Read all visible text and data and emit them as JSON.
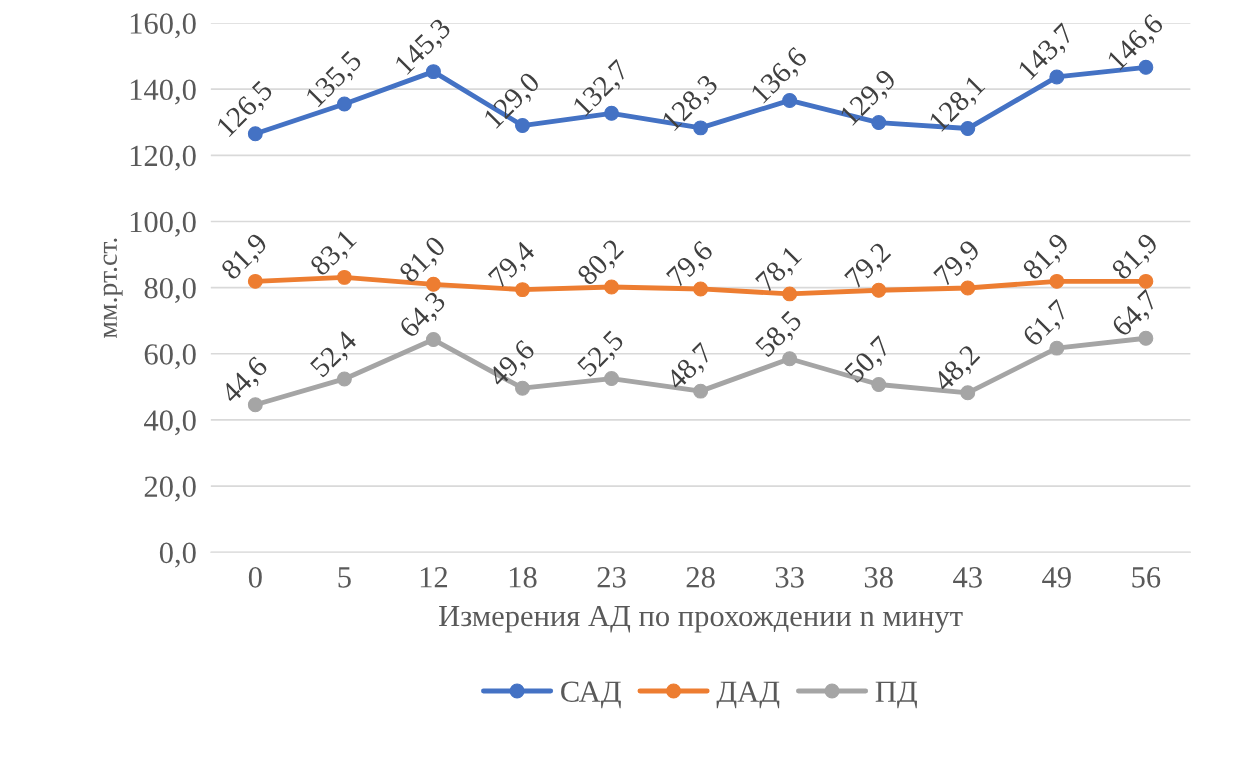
{
  "chart_data": {
    "type": "line",
    "xlabel": "Измерения АД по прохождении n минут",
    "ylabel": "мм.рт.ст.",
    "categories": [
      "0",
      "5",
      "12",
      "18",
      "23",
      "28",
      "33",
      "38",
      "43",
      "49",
      "56"
    ],
    "series": [
      {
        "name": "САД",
        "color": "#4472c4",
        "values": [
          126.5,
          135.5,
          145.3,
          129.0,
          132.7,
          128.3,
          136.6,
          129.9,
          128.1,
          143.7,
          146.6
        ],
        "value_labels": [
          "126,5",
          "135,5",
          "145,3",
          "129,0",
          "132,7",
          "128,3",
          "136,6",
          "129,9",
          "128,1",
          "143,7",
          "146,6"
        ]
      },
      {
        "name": "ДАД",
        "color": "#ed7d31",
        "values": [
          81.9,
          83.1,
          81.0,
          79.4,
          80.2,
          79.6,
          78.1,
          79.2,
          79.9,
          81.9,
          81.9
        ],
        "value_labels": [
          "81,9",
          "83,1",
          "81,0",
          "79,4",
          "80,2",
          "79,6",
          "78,1",
          "79,2",
          "79,9",
          "81,9",
          "81,9"
        ]
      },
      {
        "name": "ПД",
        "color": "#a5a5a5",
        "values": [
          44.6,
          52.4,
          64.3,
          49.6,
          52.5,
          48.7,
          58.5,
          50.7,
          48.2,
          61.7,
          64.7
        ],
        "value_labels": [
          "44,6",
          "52,4",
          "64,3",
          "49,6",
          "52,5",
          "48,7",
          "58,5",
          "50,7",
          "48,2",
          "61,7",
          "64,7"
        ]
      }
    ],
    "ylim": [
      0,
      160
    ],
    "yticks": [
      {
        "value": 0,
        "label": "0,0"
      },
      {
        "value": 20,
        "label": "20,0"
      },
      {
        "value": 40,
        "label": "40,0"
      },
      {
        "value": 60,
        "label": "60,0"
      },
      {
        "value": 80,
        "label": "80,0"
      },
      {
        "value": 100,
        "label": "100,0"
      },
      {
        "value": 120,
        "label": "120,0"
      },
      {
        "value": 140,
        "label": "140,0"
      },
      {
        "value": 160,
        "label": "160,0"
      }
    ],
    "grid": "y",
    "legend": "bottom",
    "marker": "circle",
    "line_style": "solid"
  }
}
